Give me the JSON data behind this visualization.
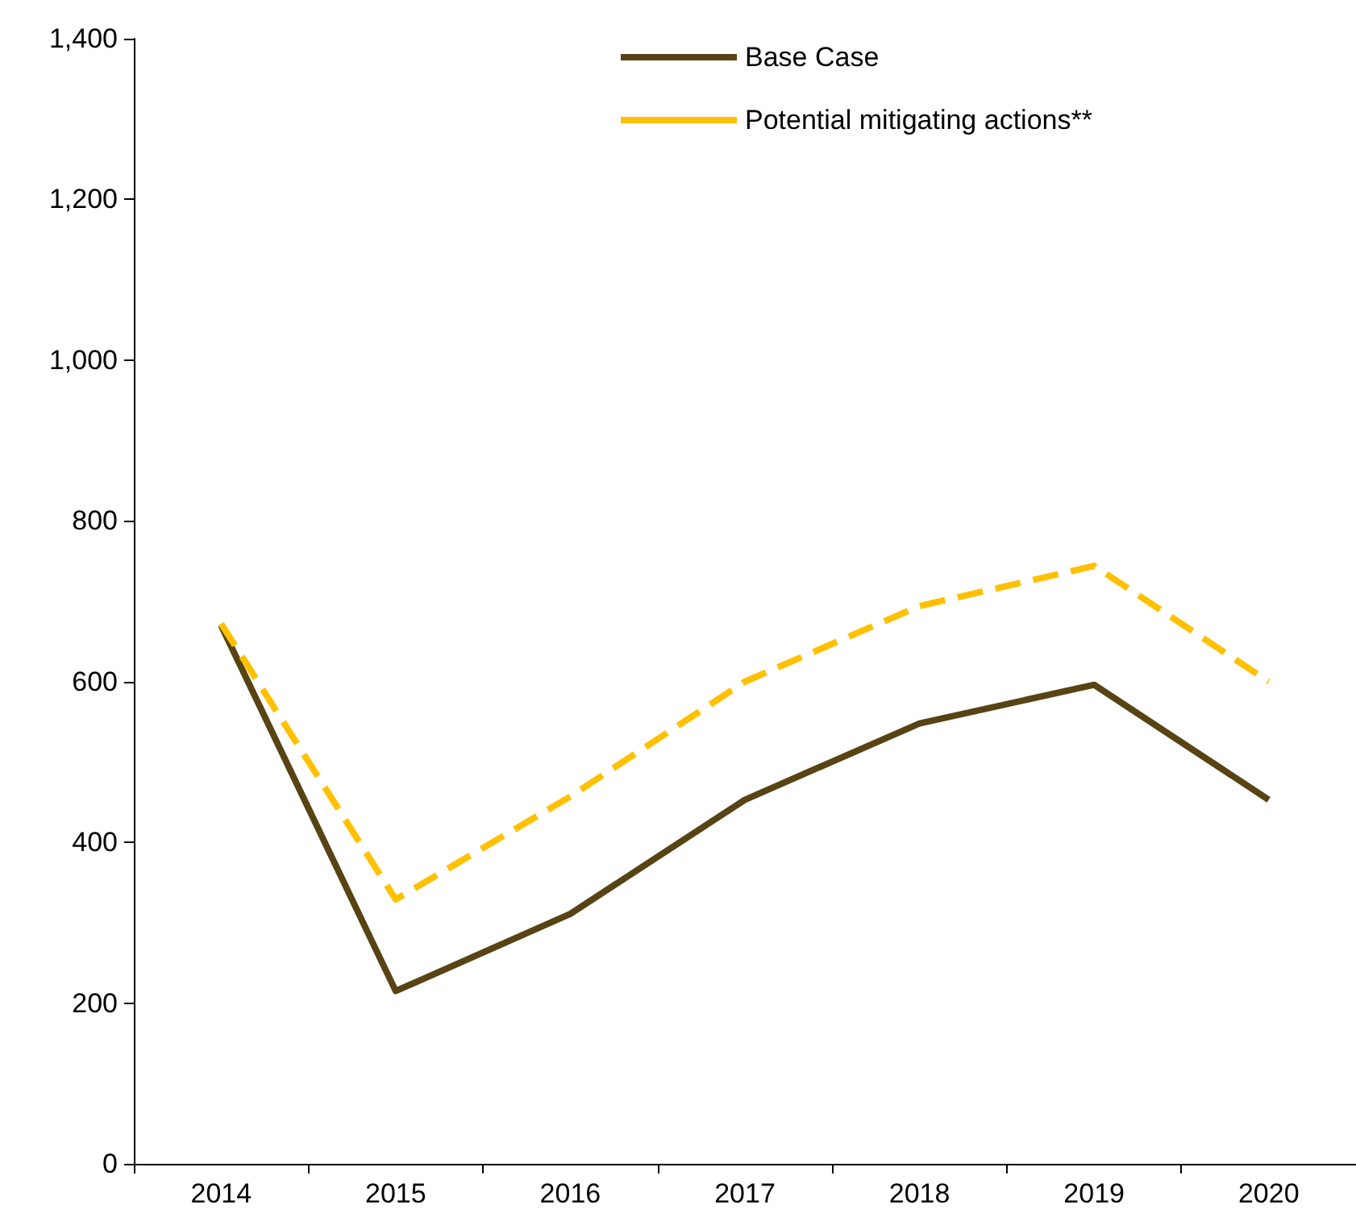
{
  "chart_data": {
    "type": "line",
    "categories": [
      "2014",
      "2015",
      "2016",
      "2017",
      "2018",
      "2019",
      "2020"
    ],
    "series": [
      {
        "name": "Base Case",
        "color": "#574313",
        "line_style": "solid",
        "values": [
          670,
          215,
          311,
          453,
          548,
          596,
          453
        ]
      },
      {
        "name": "Potential mitigating actions**",
        "color": "#ffc000",
        "line_style": "dashed",
        "values": [
          672,
          329,
          457,
          600,
          694,
          744,
          600
        ]
      }
    ],
    "ylim": [
      0,
      1400
    ],
    "yticks": [
      {
        "value": 0,
        "label": "0"
      },
      {
        "value": 200,
        "label": "200"
      },
      {
        "value": 400,
        "label": "400"
      },
      {
        "value": 600,
        "label": "600"
      },
      {
        "value": 800,
        "label": "800"
      },
      {
        "value": 1000,
        "label": "1,000"
      },
      {
        "value": 1200,
        "label": "1,200"
      },
      {
        "value": 1400,
        "label": "1,400"
      }
    ],
    "grid": false,
    "legend": "top",
    "marker": "none"
  }
}
